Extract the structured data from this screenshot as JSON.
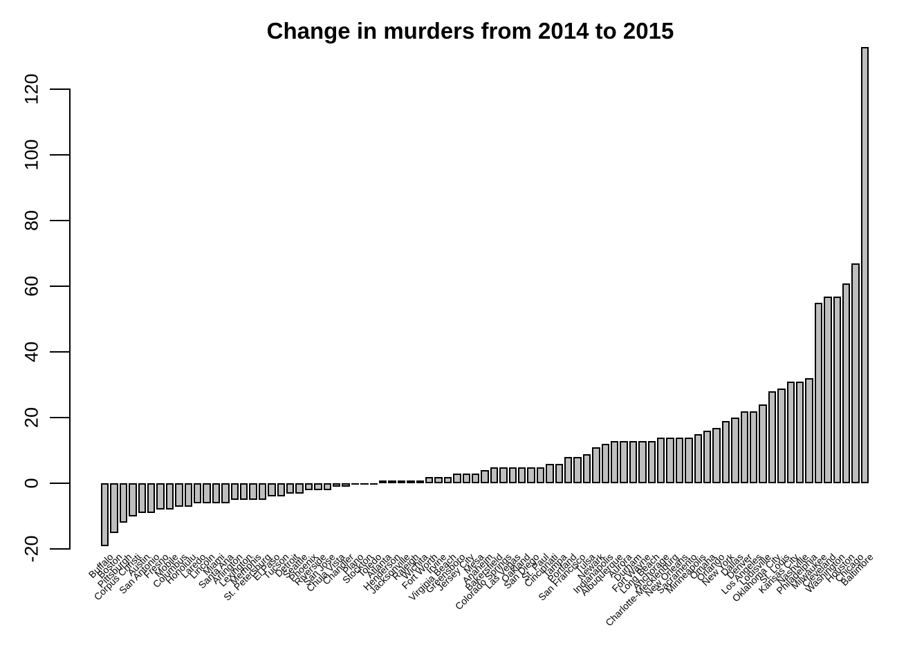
{
  "title": "Change in murders from 2014 to 2015",
  "chart_data": {
    "type": "bar",
    "title": "Change in murders from 2014 to 2015",
    "xlabel": "",
    "ylabel": "",
    "ylim": [
      -20,
      133
    ],
    "yticks": [
      -20,
      0,
      20,
      40,
      60,
      80,
      100,
      120
    ],
    "grid": false,
    "legend": null,
    "bar_fill": "#BEBEBE",
    "bar_stroke": "#000000",
    "categories": [
      "Buffalo",
      "Boston",
      "Pittsburgh",
      "Corpus Christi",
      "Austin",
      "San Antonio",
      "Fresno",
      "Mobile",
      "Columbus",
      "Honolulu",
      "Laredo",
      "Lincoln",
      "Miami",
      "Santa Ana",
      "Arlington",
      "Lexington",
      "Memphis",
      "St. Petersburg",
      "El Paso",
      "Tucson",
      "Detroit",
      "Seattle",
      "Phoenix",
      "Riverside",
      "San Jose",
      "Chula Vista",
      "Chandler",
      "Plano",
      "Stockton",
      "Toledo",
      "Atlanta",
      "Henderson",
      "Jacksonville",
      "Raleigh",
      "Wichita",
      "Fort Worth",
      "Irvine",
      "Virginia Beach",
      "Greensboro",
      "Jersey City",
      "Mesa",
      "Anaheim",
      "Bakersfield",
      "Colorado Springs",
      "Las Vegas",
      "Oakland",
      "San Diego",
      "St. Paul",
      "Cincinnati",
      "Tampa",
      "Portland",
      "San Francisco",
      "Tulsa",
      "Newark",
      "Indianapolis",
      "Albuquerque",
      "Aurora",
      "Durham",
      "Fort Wayne",
      "Long Beach",
      "Anchorage",
      "Charlotte-Mecklenburg",
      "New Orleans",
      "Sacramento",
      "Minneapolis",
      "Omaha",
      "Orlando",
      "New York",
      "Dallas",
      "Denver",
      "Los Angeles",
      "Louisville",
      "Oklahoma City",
      "St. Louis",
      "Kansas City",
      "Nashville",
      "Philadelphia",
      "Milwaukee",
      "Cleveland",
      "Washington",
      "Houston",
      "Chicago",
      "Baltimore"
    ],
    "values": [
      -19,
      -15,
      -12,
      -10,
      -9,
      -9,
      -8,
      -8,
      -7,
      -7,
      -6,
      -6,
      -6,
      -6,
      -5,
      -5,
      -5,
      -5,
      -4,
      -4,
      -3,
      -3,
      -2,
      -2,
      -2,
      -1,
      -1,
      0,
      0,
      0,
      1,
      1,
      1,
      1,
      1,
      2,
      2,
      2,
      3,
      3,
      3,
      4,
      5,
      5,
      5,
      5,
      5,
      5,
      6,
      6,
      8,
      8,
      9,
      11,
      12,
      13,
      13,
      13,
      13,
      13,
      14,
      14,
      14,
      14,
      15,
      16,
      17,
      19,
      20,
      22,
      22,
      24,
      28,
      29,
      31,
      31,
      32,
      55,
      57,
      57,
      61,
      67,
      133
    ]
  }
}
